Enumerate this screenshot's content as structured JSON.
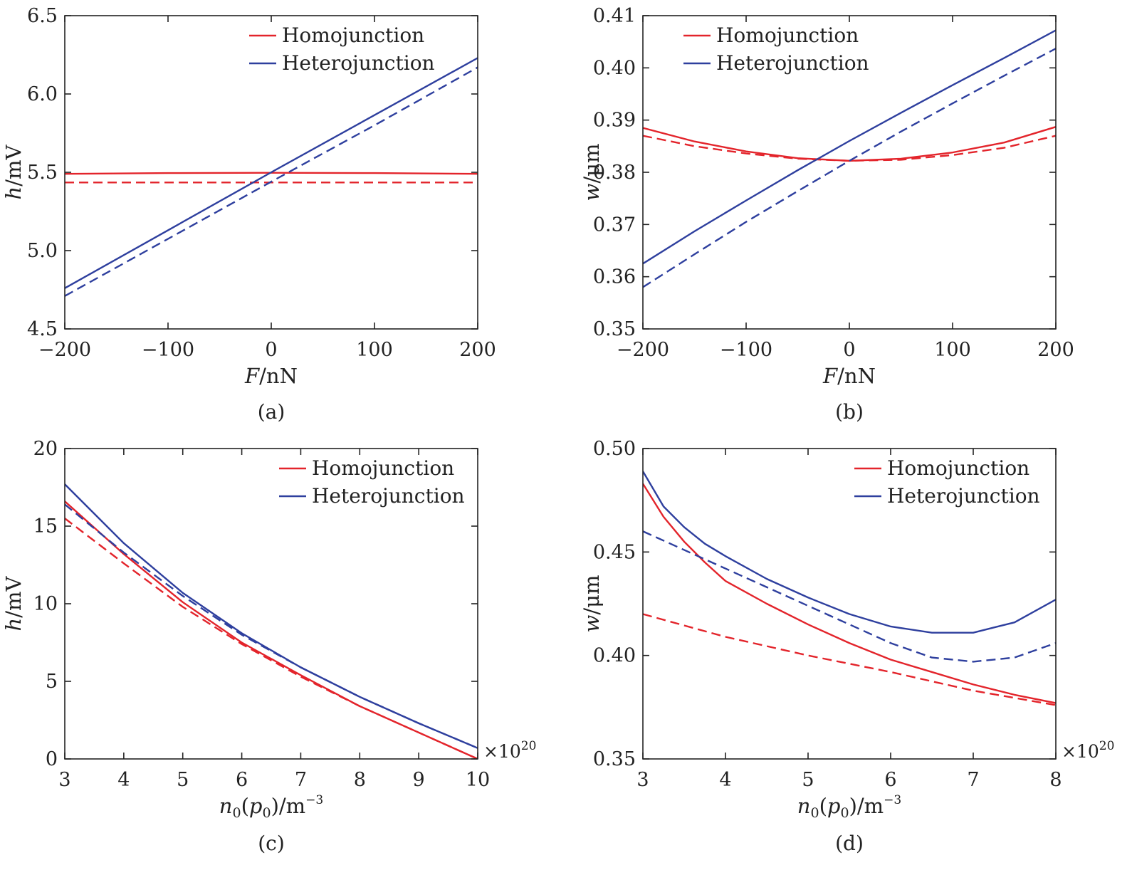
{
  "colors": {
    "homojunction": "#e3242b",
    "heterojunction": "#2e3f9e",
    "axis": "#222222"
  },
  "chart_data": [
    {
      "type": "line",
      "panel": "(a)",
      "xlabel_var": "F",
      "xlabel_unit": "/nN",
      "ylabel_var": "h",
      "ylabel_unit": "/mV",
      "xlim": [
        -200,
        200
      ],
      "ylim": [
        4.5,
        6.5
      ],
      "xticks": [
        -200,
        -100,
        0,
        100,
        200
      ],
      "xtick_labels": [
        "−200",
        "−100",
        "0",
        "100",
        "200"
      ],
      "yticks": [
        4.5,
        5.0,
        5.5,
        6.0,
        6.5
      ],
      "ytick_labels": [
        "4.5",
        "5.0",
        "5.5",
        "6.0",
        "6.5"
      ],
      "multiplier": "",
      "legend": [
        {
          "label": "Homojunction",
          "color": "#e3242b"
        },
        {
          "label": "Heterojunction",
          "color": "#2e3f9e"
        }
      ],
      "legend_position": "top-right",
      "series": [
        {
          "color": "#e3242b",
          "dash": false,
          "x": [
            -200,
            -100,
            0,
            100,
            200
          ],
          "y": [
            5.49,
            5.495,
            5.497,
            5.495,
            5.49
          ]
        },
        {
          "color": "#e3242b",
          "dash": true,
          "x": [
            -200,
            -100,
            0,
            100,
            200
          ],
          "y": [
            5.435,
            5.435,
            5.435,
            5.435,
            5.435
          ]
        },
        {
          "color": "#2e3f9e",
          "dash": false,
          "x": [
            -200,
            -100,
            0,
            100,
            200
          ],
          "y": [
            4.76,
            5.13,
            5.5,
            5.865,
            6.23
          ]
        },
        {
          "color": "#2e3f9e",
          "dash": true,
          "x": [
            -200,
            -100,
            0,
            100,
            200
          ],
          "y": [
            4.71,
            5.075,
            5.44,
            5.8,
            6.17
          ]
        }
      ]
    },
    {
      "type": "line",
      "panel": "(b)",
      "xlabel_var": "F",
      "xlabel_unit": "/nN",
      "ylabel_var": "w",
      "ylabel_unit": "/μm",
      "xlim": [
        -200,
        200
      ],
      "ylim": [
        0.35,
        0.41
      ],
      "xticks": [
        -200,
        -100,
        0,
        100,
        200
      ],
      "xtick_labels": [
        "−200",
        "−100",
        "0",
        "100",
        "200"
      ],
      "yticks": [
        0.35,
        0.36,
        0.37,
        0.38,
        0.39,
        0.4,
        0.41
      ],
      "ytick_labels": [
        "0.35",
        "0.36",
        "0.37",
        "0.38",
        "0.39",
        "0.40",
        "0.41"
      ],
      "multiplier": "",
      "legend": [
        {
          "label": "Homojunction",
          "color": "#e3242b"
        },
        {
          "label": "Heterojunction",
          "color": "#2e3f9e"
        }
      ],
      "legend_position": "top-left",
      "series": [
        {
          "color": "#e3242b",
          "dash": false,
          "x": [
            -200,
            -150,
            -100,
            -50,
            0,
            50,
            100,
            150,
            200
          ],
          "y": [
            0.3885,
            0.3859,
            0.384,
            0.3827,
            0.3822,
            0.3826,
            0.3838,
            0.3857,
            0.3887
          ]
        },
        {
          "color": "#e3242b",
          "dash": true,
          "x": [
            -200,
            -150,
            -100,
            -50,
            0,
            50,
            100,
            150,
            200
          ],
          "y": [
            0.387,
            0.385,
            0.3836,
            0.3826,
            0.3822,
            0.3824,
            0.3833,
            0.3847,
            0.387
          ]
        },
        {
          "color": "#2e3f9e",
          "dash": false,
          "x": [
            -200,
            -150,
            -100,
            -50,
            0,
            50,
            100,
            150,
            200
          ],
          "y": [
            0.3625,
            0.3687,
            0.3746,
            0.3804,
            0.386,
            0.3914,
            0.3967,
            0.4019,
            0.4072
          ]
        },
        {
          "color": "#2e3f9e",
          "dash": true,
          "x": [
            -200,
            -150,
            -100,
            -50,
            0,
            50,
            100,
            150,
            200
          ],
          "y": [
            0.358,
            0.3643,
            0.3705,
            0.3764,
            0.3822,
            0.3878,
            0.3932,
            0.3985,
            0.4037
          ]
        }
      ]
    },
    {
      "type": "line",
      "panel": "(c)",
      "xlabel_var": "n",
      "xlabel_sub": "0",
      "xlabel_mid": "(",
      "xlabel_var2": "p",
      "xlabel_sub2": "0",
      "xlabel_end": ")/m",
      "xlabel_sup": "−3",
      "ylabel_var": "h",
      "ylabel_unit": "/mV",
      "xlim": [
        3,
        10
      ],
      "ylim": [
        0,
        20
      ],
      "xticks": [
        3,
        4,
        5,
        6,
        7,
        8,
        9,
        10
      ],
      "xtick_labels": [
        "3",
        "4",
        "5",
        "6",
        "7",
        "8",
        "9",
        "10"
      ],
      "yticks": [
        0,
        5,
        10,
        15,
        20
      ],
      "ytick_labels": [
        "0",
        "5",
        "10",
        "15",
        "20"
      ],
      "multiplier": "×10",
      "multiplier_exp": "20",
      "legend": [
        {
          "label": "Homojunction",
          "color": "#e3242b"
        },
        {
          "label": "Heterojunction",
          "color": "#2e3f9e"
        }
      ],
      "legend_position": "top-right",
      "series": [
        {
          "color": "#e3242b",
          "dash": false,
          "x": [
            3,
            4,
            5,
            6,
            7,
            8,
            9,
            10
          ],
          "y": [
            16.6,
            13.2,
            10.1,
            7.5,
            5.4,
            3.4,
            1.7,
            0.0
          ]
        },
        {
          "color": "#e3242b",
          "dash": true,
          "x": [
            3,
            4,
            5,
            6,
            7,
            8,
            9,
            10
          ],
          "y": [
            15.5,
            12.6,
            9.8,
            7.4,
            5.3,
            3.4,
            1.7,
            0.0
          ]
        },
        {
          "color": "#2e3f9e",
          "dash": false,
          "x": [
            3,
            4,
            5,
            6,
            7,
            8,
            9,
            10
          ],
          "y": [
            17.7,
            13.9,
            10.7,
            8.1,
            5.9,
            4.0,
            2.3,
            0.7
          ]
        },
        {
          "color": "#2e3f9e",
          "dash": true,
          "x": [
            3,
            4,
            5,
            6,
            7,
            8,
            9,
            10
          ],
          "y": [
            16.4,
            13.3,
            10.5,
            8.0,
            5.9,
            4.0,
            2.3,
            0.7
          ]
        }
      ]
    },
    {
      "type": "line",
      "panel": "(d)",
      "xlabel_var": "n",
      "xlabel_sub": "0",
      "xlabel_mid": "(",
      "xlabel_var2": "p",
      "xlabel_sub2": "0",
      "xlabel_end": ")/m",
      "xlabel_sup": "−3",
      "ylabel_var": "w",
      "ylabel_unit": "/μm",
      "xlim": [
        3,
        8
      ],
      "ylim": [
        0.35,
        0.5
      ],
      "xticks": [
        3,
        4,
        5,
        6,
        7,
        8
      ],
      "xtick_labels": [
        "3",
        "4",
        "5",
        "6",
        "7",
        "8"
      ],
      "yticks": [
        0.35,
        0.4,
        0.45,
        0.5
      ],
      "ytick_labels": [
        "0.35",
        "0.40",
        "0.45",
        "0.50"
      ],
      "multiplier": "×10",
      "multiplier_exp": "20",
      "legend": [
        {
          "label": "Homojunction",
          "color": "#e3242b"
        },
        {
          "label": "Heterojunction",
          "color": "#2e3f9e"
        }
      ],
      "legend_position": "top-right",
      "series": [
        {
          "color": "#e3242b",
          "dash": false,
          "x": [
            3,
            3.25,
            3.5,
            3.75,
            4,
            4.5,
            5,
            5.5,
            6,
            6.5,
            7,
            7.5,
            8
          ],
          "y": [
            0.483,
            0.467,
            0.455,
            0.445,
            0.436,
            0.425,
            0.415,
            0.406,
            0.398,
            0.392,
            0.386,
            0.381,
            0.377
          ]
        },
        {
          "color": "#e3242b",
          "dash": true,
          "x": [
            3,
            4,
            5,
            6,
            7,
            8
          ],
          "y": [
            0.42,
            0.409,
            0.4,
            0.392,
            0.383,
            0.376
          ]
        },
        {
          "color": "#2e3f9e",
          "dash": false,
          "x": [
            3,
            3.25,
            3.5,
            3.75,
            4,
            4.5,
            5,
            5.5,
            6,
            6.5,
            7,
            7.5,
            8
          ],
          "y": [
            0.489,
            0.472,
            0.462,
            0.454,
            0.448,
            0.437,
            0.428,
            0.42,
            0.414,
            0.411,
            0.411,
            0.416,
            0.427
          ]
        },
        {
          "color": "#2e3f9e",
          "dash": true,
          "x": [
            3,
            3.5,
            4,
            4.5,
            5,
            5.5,
            6,
            6.5,
            7,
            7.5,
            8
          ],
          "y": [
            0.46,
            0.451,
            0.442,
            0.433,
            0.424,
            0.415,
            0.406,
            0.399,
            0.397,
            0.399,
            0.406
          ]
        }
      ]
    }
  ]
}
